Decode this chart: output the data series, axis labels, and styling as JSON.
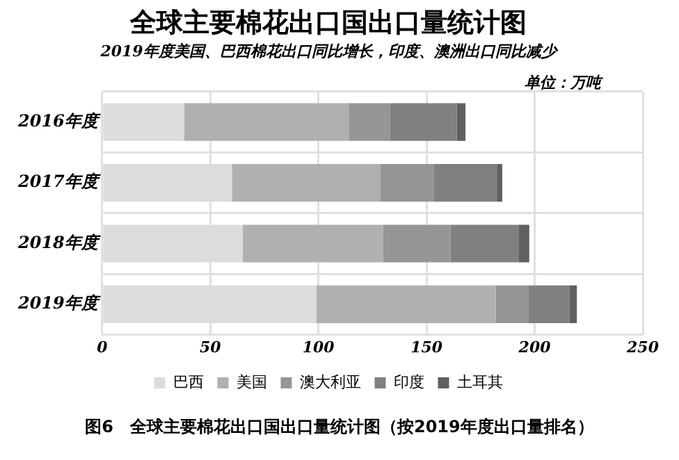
{
  "chart_data": {
    "type": "bar",
    "orientation": "horizontal",
    "stacked": true,
    "title": "全球主要棉花出口国出口量统计图",
    "subtitle": "2019年度美国、巴西棉花出口同比增长，印度、澳洲出口同比减少",
    "annotations": [
      "单位：万吨",
      "图6　全球主要棉花出口国出口量统计图（按2019年度出口量排名）"
    ],
    "categories": [
      "2016年度",
      "2017年度",
      "2018年度",
      "2019年度"
    ],
    "series": [
      {
        "name": "巴西",
        "color": "#dcdcdc",
        "values": [
          38,
          60,
          65,
          99
        ]
      },
      {
        "name": "美国",
        "color": "#b0b0b0",
        "values": [
          76,
          68.5,
          65,
          83
        ]
      },
      {
        "name": "澳大利亚",
        "color": "#969696",
        "values": [
          19,
          25,
          31,
          15
        ]
      },
      {
        "name": "印度",
        "color": "#808080",
        "values": [
          31,
          29,
          31.5,
          19
        ]
      },
      {
        "name": "土耳其",
        "color": "#606060",
        "values": [
          4,
          2.5,
          5,
          3.5
        ]
      }
    ],
    "xlim": [
      0,
      250
    ],
    "xticks": [
      0,
      50,
      100,
      150,
      200,
      250
    ],
    "grid": true,
    "legend": "bottom"
  }
}
